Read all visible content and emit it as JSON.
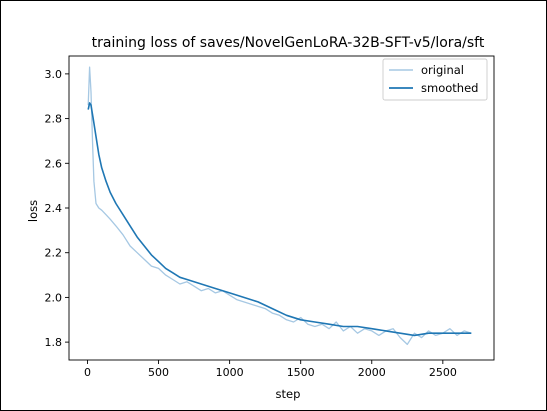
{
  "chart_data": {
    "type": "line",
    "title": "training loss of saves/NovelGenLoRA-32B-SFT-v5/lora/sft",
    "xlabel": "step",
    "ylabel": "loss",
    "xlim": [
      -130,
      2860
    ],
    "ylim": [
      1.72,
      3.08
    ],
    "xticks": [
      0,
      500,
      1000,
      1500,
      2000,
      2500
    ],
    "yticks": [
      1.8,
      2.0,
      2.2,
      2.4,
      2.6,
      2.8,
      3.0
    ],
    "xtick_labels": [
      "0",
      "500",
      "1000",
      "1500",
      "2000",
      "2500"
    ],
    "ytick_labels": [
      "1.8",
      "2.0",
      "2.2",
      "2.4",
      "2.6",
      "2.8",
      "3.0"
    ],
    "grid": false,
    "legend": {
      "placement": "top-right"
    },
    "series": [
      {
        "name": "original",
        "color": "#a6c8e3",
        "x": [
          5,
          15,
          25,
          35,
          45,
          60,
          80,
          100,
          130,
          160,
          200,
          250,
          300,
          350,
          400,
          450,
          500,
          550,
          600,
          650,
          700,
          750,
          800,
          850,
          900,
          950,
          1000,
          1050,
          1100,
          1150,
          1200,
          1250,
          1300,
          1350,
          1400,
          1450,
          1500,
          1550,
          1600,
          1650,
          1700,
          1750,
          1800,
          1850,
          1900,
          1950,
          2000,
          2050,
          2100,
          2150,
          2200,
          2250,
          2300,
          2350,
          2400,
          2450,
          2500,
          2550,
          2600,
          2650,
          2700
        ],
        "values": [
          2.86,
          3.03,
          2.92,
          2.7,
          2.52,
          2.42,
          2.4,
          2.39,
          2.37,
          2.35,
          2.32,
          2.28,
          2.23,
          2.2,
          2.17,
          2.14,
          2.13,
          2.1,
          2.08,
          2.06,
          2.07,
          2.05,
          2.03,
          2.04,
          2.02,
          2.03,
          2.01,
          1.99,
          1.98,
          1.97,
          1.96,
          1.95,
          1.93,
          1.92,
          1.9,
          1.89,
          1.91,
          1.88,
          1.87,
          1.88,
          1.86,
          1.89,
          1.85,
          1.87,
          1.84,
          1.86,
          1.85,
          1.83,
          1.85,
          1.86,
          1.82,
          1.79,
          1.84,
          1.82,
          1.85,
          1.83,
          1.84,
          1.86,
          1.83,
          1.85,
          1.84
        ]
      },
      {
        "name": "smoothed",
        "color": "#1f77b4",
        "x": [
          5,
          15,
          25,
          40,
          60,
          80,
          100,
          130,
          160,
          200,
          250,
          300,
          350,
          400,
          450,
          500,
          550,
          600,
          650,
          700,
          750,
          800,
          900,
          1000,
          1100,
          1200,
          1300,
          1400,
          1500,
          1600,
          1700,
          1800,
          1900,
          2000,
          2100,
          2200,
          2300,
          2400,
          2500,
          2600,
          2700
        ],
        "values": [
          2.84,
          2.87,
          2.86,
          2.8,
          2.72,
          2.64,
          2.58,
          2.52,
          2.47,
          2.42,
          2.37,
          2.32,
          2.27,
          2.23,
          2.19,
          2.16,
          2.13,
          2.11,
          2.09,
          2.08,
          2.07,
          2.06,
          2.04,
          2.02,
          2.0,
          1.98,
          1.95,
          1.92,
          1.9,
          1.89,
          1.88,
          1.87,
          1.87,
          1.86,
          1.85,
          1.84,
          1.83,
          1.84,
          1.84,
          1.84,
          1.84
        ]
      }
    ]
  }
}
